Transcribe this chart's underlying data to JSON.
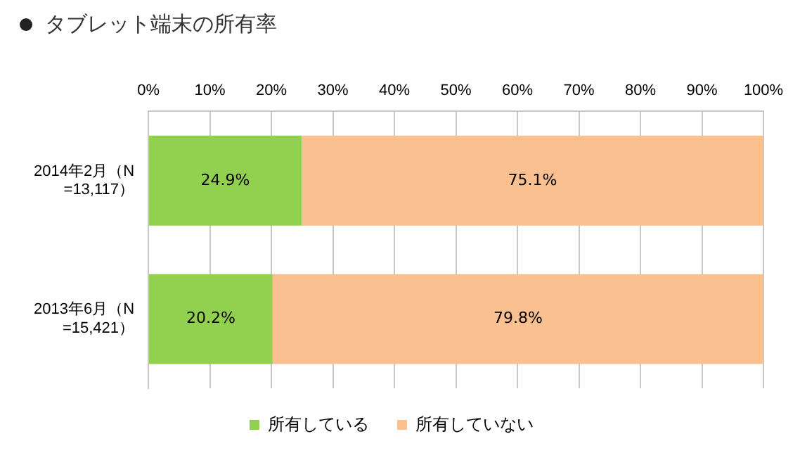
{
  "chart_data": {
    "type": "bar",
    "orientation": "horizontal",
    "stacked": true,
    "title": "タブレット端末の所有率",
    "categories": [
      "2014年2月（N=13,117）",
      "2013年6月（N=15,421）"
    ],
    "series": [
      {
        "name": "所有している",
        "color": "#92d050",
        "values": [
          24.9,
          20.2
        ]
      },
      {
        "name": "所有していない",
        "color": "#fac090",
        "values": [
          75.1,
          79.8
        ]
      }
    ],
    "value_labels": [
      [
        "24.9%",
        "20.2%"
      ],
      [
        "75.1%",
        "79.8%"
      ]
    ],
    "xlim": [
      0,
      100
    ],
    "xticks": [
      {
        "value": 0,
        "label": "0%"
      },
      {
        "value": 10,
        "label": "10%"
      },
      {
        "value": 20,
        "label": "20%"
      },
      {
        "value": 30,
        "label": "30%"
      },
      {
        "value": 40,
        "label": "40%"
      },
      {
        "value": 50,
        "label": "50%"
      },
      {
        "value": 60,
        "label": "60%"
      },
      {
        "value": 70,
        "label": "70%"
      },
      {
        "value": 80,
        "label": "80%"
      },
      {
        "value": 90,
        "label": "90%"
      },
      {
        "value": 100,
        "label": "100%"
      }
    ],
    "grid": "x",
    "legend": "bottom"
  }
}
